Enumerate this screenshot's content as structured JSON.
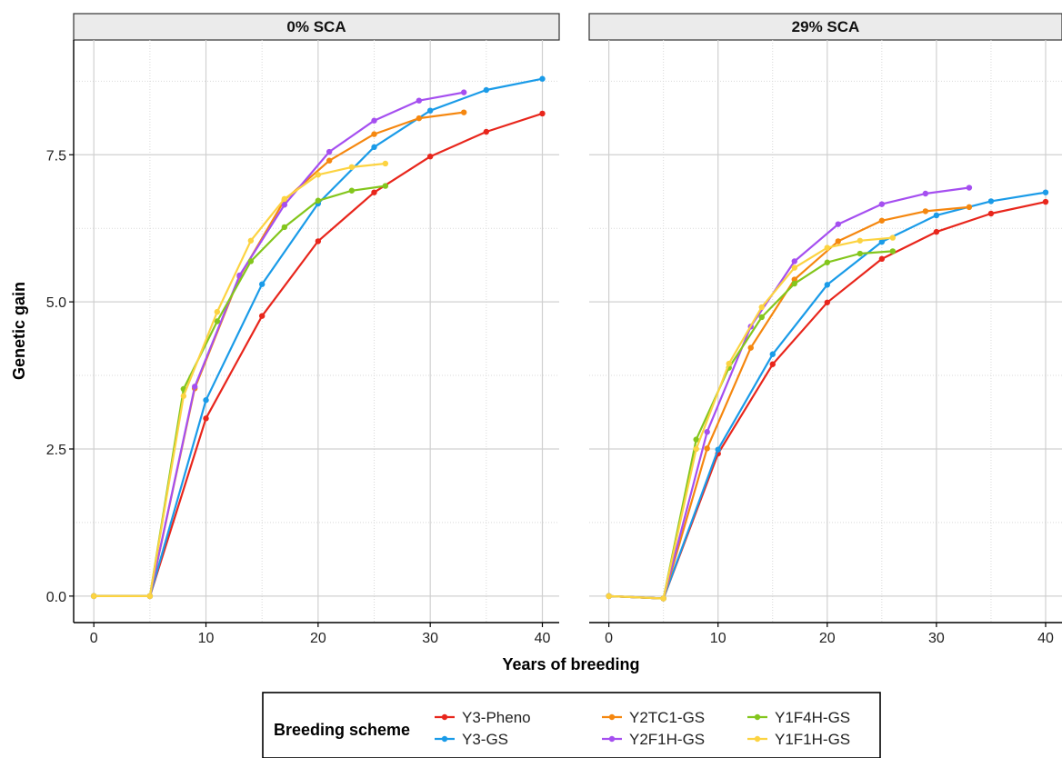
{
  "chart_data": {
    "type": "line",
    "xlabel": "Years of breeding",
    "ylabel": "Genetic gain",
    "xlim": [
      -1.8,
      41.5
    ],
    "ylim": [
      -0.45,
      9.45
    ],
    "xticks": [
      0,
      10,
      20,
      30,
      40
    ],
    "yticks": [
      0.0,
      2.5,
      5.0,
      7.5
    ],
    "ytick_labels": [
      "0.0",
      "2.5",
      "5.0",
      "7.5"
    ],
    "grid": true,
    "legend": {
      "title": "Breeding scheme",
      "position": "bottom",
      "entries": [
        "Y3-Pheno",
        "Y3-GS",
        "Y2TC1-GS",
        "Y2F1H-GS",
        "Y1F4H-GS",
        "Y1F1H-GS"
      ]
    },
    "colors": {
      "Y3-Pheno": "#e8261c",
      "Y3-GS": "#1a9be8",
      "Y2TC1-GS": "#f5870f",
      "Y2F1H-GS": "#a54ff0",
      "Y1F4H-GS": "#83c61d",
      "Y1F1H-GS": "#fcd341"
    },
    "panels": [
      {
        "title": "0% SCA",
        "series": [
          {
            "name": "Y3-Pheno",
            "x": [
              0,
              5,
              10,
              15,
              20,
              25,
              30,
              35,
              40
            ],
            "y": [
              0.0,
              0.0,
              3.02,
              4.76,
              6.03,
              6.86,
              7.47,
              7.89,
              8.2
            ]
          },
          {
            "name": "Y3-GS",
            "x": [
              0,
              5,
              10,
              15,
              20,
              25,
              30,
              35,
              40
            ],
            "y": [
              0.0,
              0.0,
              3.33,
              5.3,
              6.67,
              7.63,
              8.25,
              8.6,
              8.79
            ]
          },
          {
            "name": "Y2TC1-GS",
            "x": [
              0,
              5,
              9,
              13,
              17,
              21,
              25,
              29,
              33
            ],
            "y": [
              0.0,
              0.0,
              3.53,
              5.43,
              6.73,
              7.4,
              7.85,
              8.12,
              8.22
            ]
          },
          {
            "name": "Y2F1H-GS",
            "x": [
              0,
              5,
              9,
              13,
              17,
              21,
              25,
              29,
              33
            ],
            "y": [
              0.0,
              0.0,
              3.56,
              5.45,
              6.65,
              7.55,
              8.08,
              8.42,
              8.56
            ]
          },
          {
            "name": "Y1F4H-GS",
            "x": [
              0,
              5,
              8,
              11,
              14,
              17,
              20,
              23,
              26
            ],
            "y": [
              0.0,
              0.0,
              3.52,
              4.67,
              5.69,
              6.27,
              6.72,
              6.89,
              6.97
            ]
          },
          {
            "name": "Y1F1H-GS",
            "x": [
              0,
              5,
              8,
              11,
              14,
              17,
              20,
              23,
              26
            ],
            "y": [
              0.0,
              0.0,
              3.4,
              4.83,
              6.04,
              6.75,
              7.16,
              7.29,
              7.35
            ]
          }
        ]
      },
      {
        "title": "29% SCA",
        "series": [
          {
            "name": "Y3-Pheno",
            "x": [
              0,
              5,
              10,
              15,
              20,
              25,
              30,
              35,
              40
            ],
            "y": [
              0.0,
              -0.04,
              2.42,
              3.94,
              4.99,
              5.73,
              6.19,
              6.5,
              6.7
            ]
          },
          {
            "name": "Y3-GS",
            "x": [
              0,
              5,
              10,
              15,
              20,
              25,
              30,
              35,
              40
            ],
            "y": [
              0.0,
              -0.04,
              2.49,
              4.11,
              5.29,
              6.02,
              6.47,
              6.71,
              6.86
            ]
          },
          {
            "name": "Y2TC1-GS",
            "x": [
              0,
              5,
              9,
              13,
              17,
              21,
              25,
              29,
              33
            ],
            "y": [
              0.0,
              -0.04,
              2.51,
              4.22,
              5.38,
              6.03,
              6.38,
              6.54,
              6.61
            ]
          },
          {
            "name": "Y2F1H-GS",
            "x": [
              0,
              5,
              9,
              13,
              17,
              21,
              25,
              29,
              33
            ],
            "y": [
              0.0,
              -0.04,
              2.79,
              4.58,
              5.69,
              6.32,
              6.66,
              6.84,
              6.94
            ]
          },
          {
            "name": "Y1F4H-GS",
            "x": [
              0,
              5,
              8,
              11,
              14,
              17,
              20,
              23,
              26
            ],
            "y": [
              0.0,
              -0.04,
              2.66,
              3.88,
              4.74,
              5.31,
              5.67,
              5.82,
              5.86
            ]
          },
          {
            "name": "Y1F1H-GS",
            "x": [
              0,
              5,
              8,
              11,
              14,
              17,
              20,
              23,
              26
            ],
            "y": [
              0.0,
              -0.04,
              2.5,
              3.95,
              4.91,
              5.58,
              5.92,
              6.04,
              6.09
            ]
          }
        ]
      }
    ]
  }
}
